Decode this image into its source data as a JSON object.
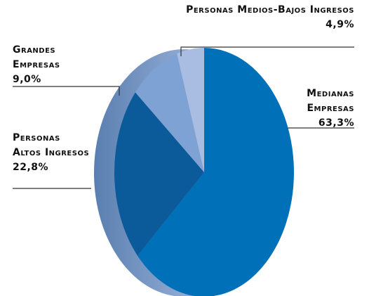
{
  "chart_data": {
    "type": "pie",
    "categories": [
      "Medianas Empresas",
      "Personas Altos Ingresos",
      "Grandes Empresas",
      "Personas Medios-Bajos Ingresos"
    ],
    "values": [
      63.3,
      22.8,
      9.0,
      4.9
    ],
    "value_labels": [
      "63,3%",
      "22,8%",
      "9,0%",
      "4,9%"
    ],
    "colors": [
      "#0071b9",
      "#0b5a99",
      "#7ea2d3",
      "#a9bde2"
    ]
  }
}
